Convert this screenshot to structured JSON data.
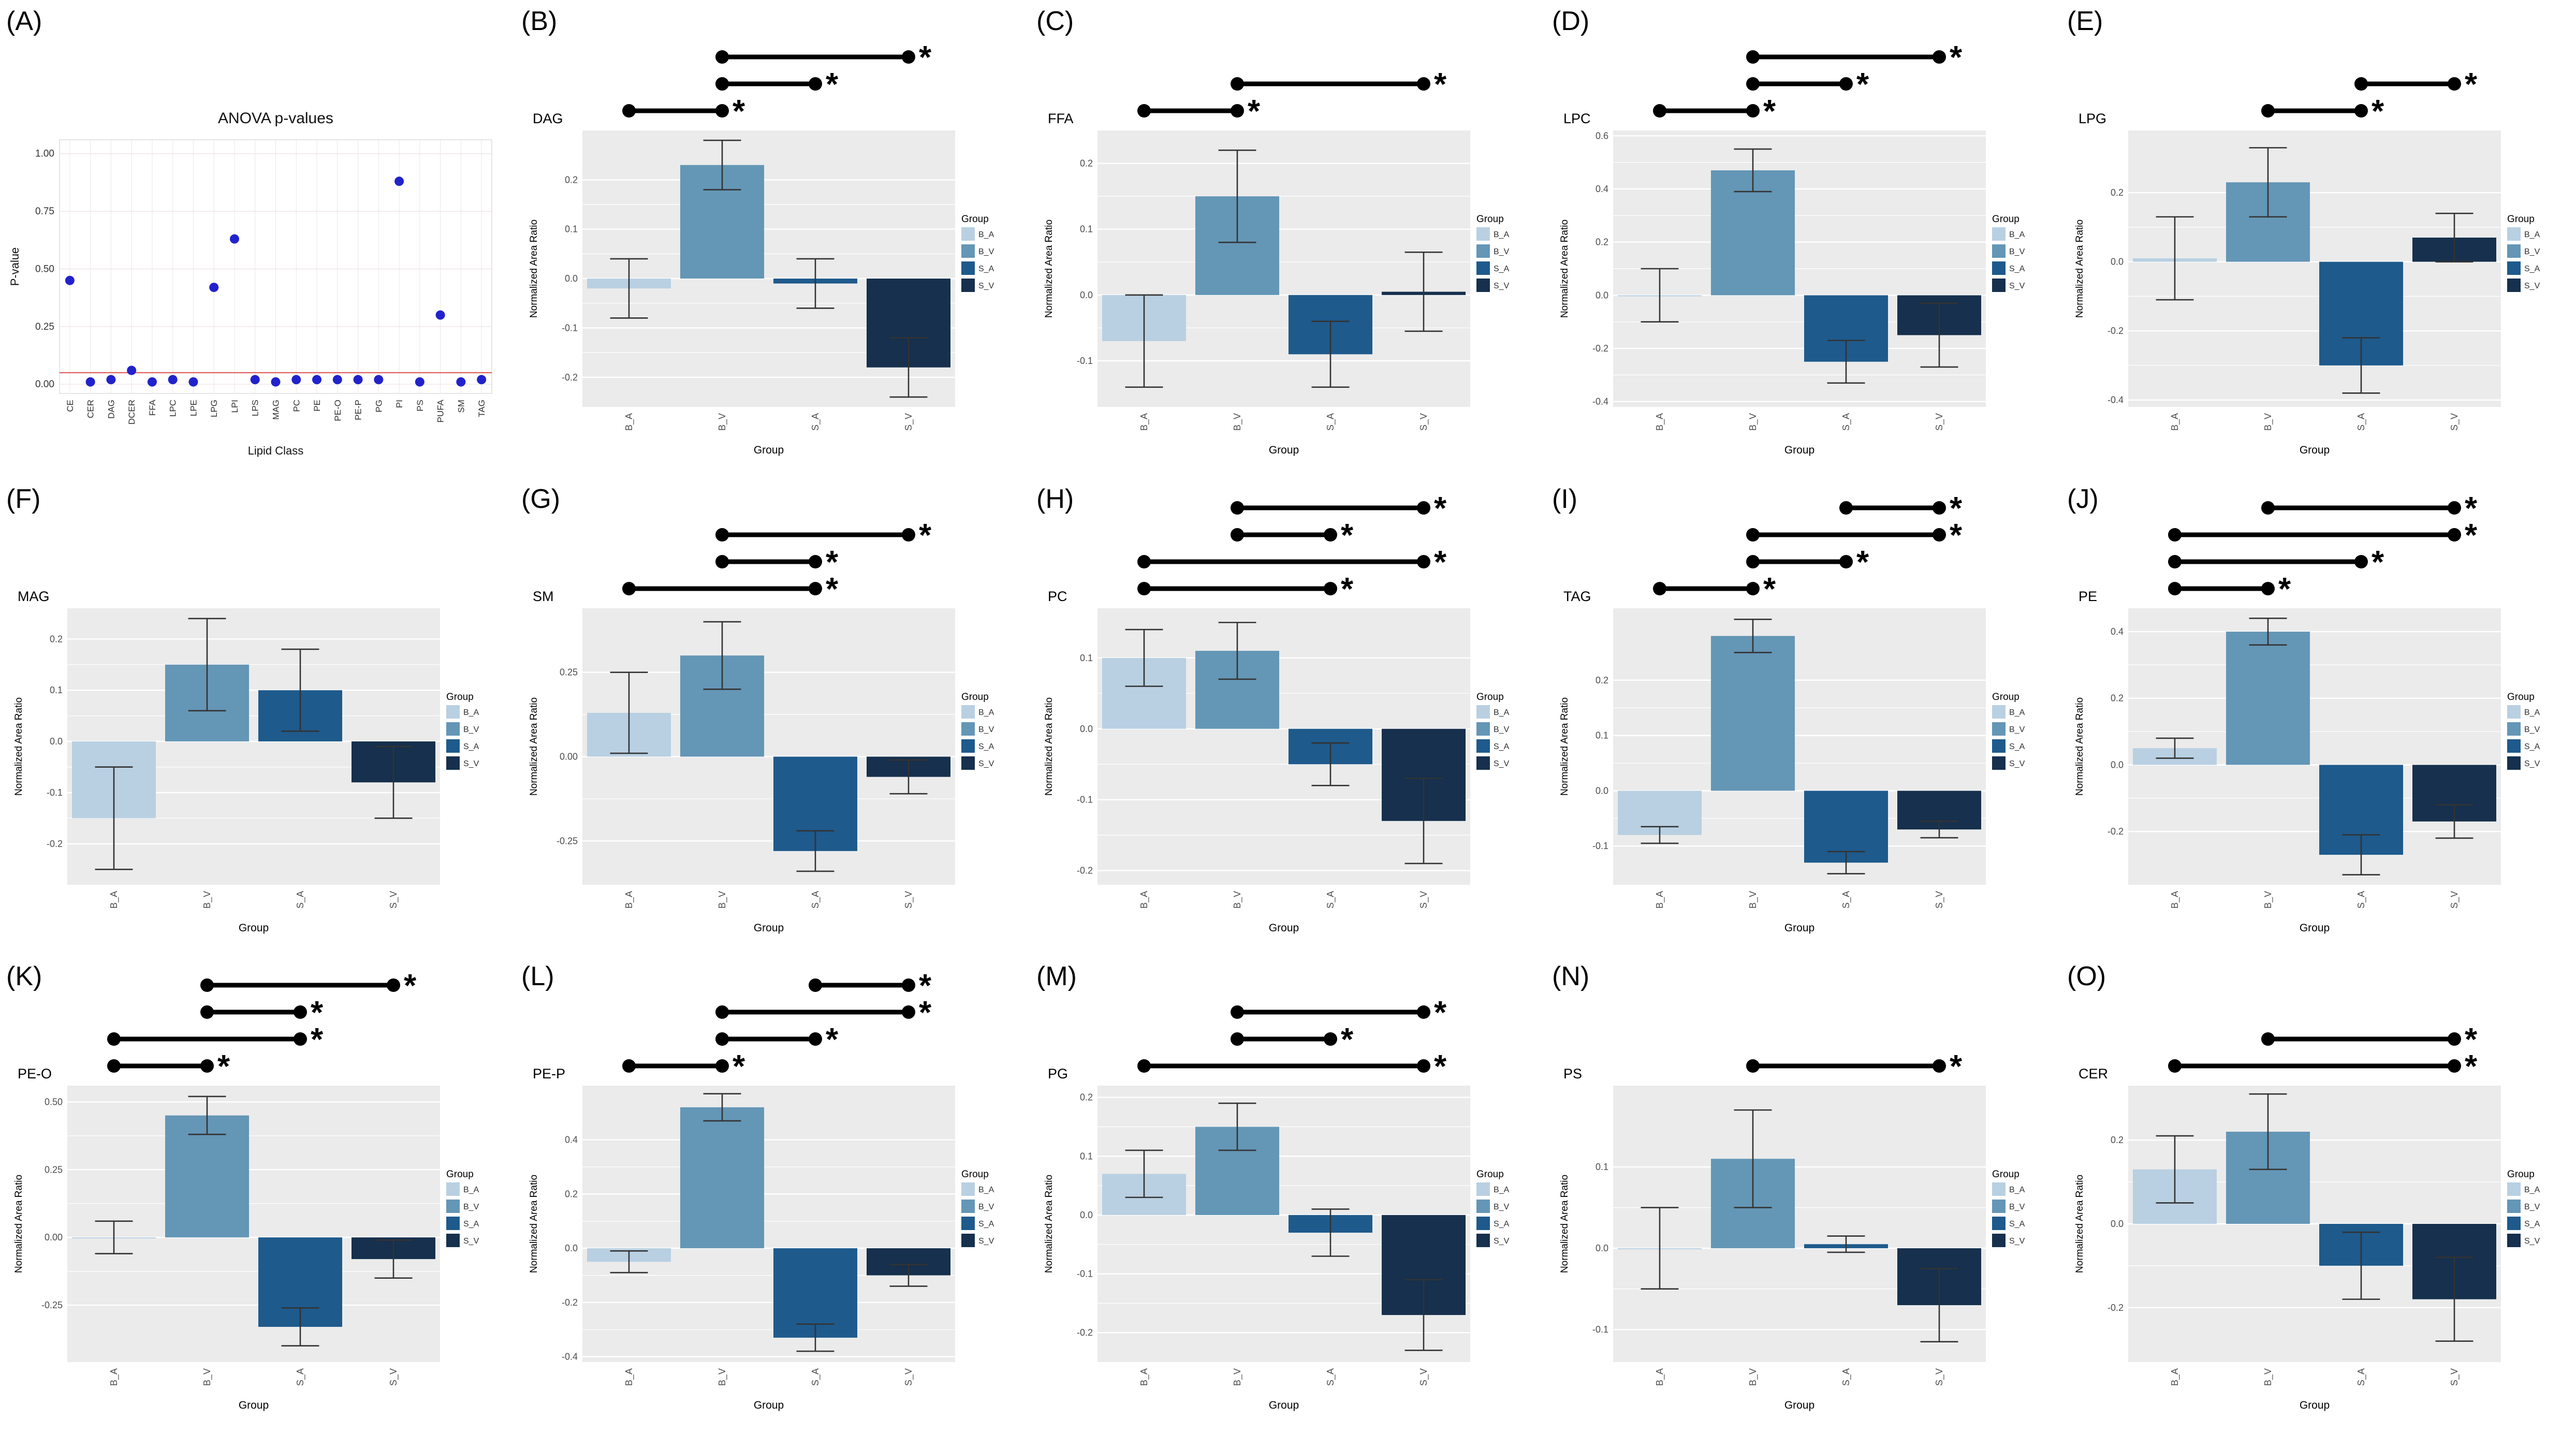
{
  "palette": {
    "legend_title": "Group",
    "groups": [
      "B_A",
      "B_V",
      "S_A",
      "S_V"
    ],
    "colors": [
      "#b9d0e2",
      "#6496b6",
      "#1e5a8c",
      "#16304d"
    ]
  },
  "styles": {
    "panel_background": "#ebebeb",
    "gridline_color": "#ffffff",
    "significance_color": "#000000"
  },
  "chart_data": [
    {
      "panel": "A",
      "panel_label": "(A)",
      "type": "scatter",
      "title": "ANOVA p-values",
      "xlabel": "Lipid Class",
      "ylabel": "P-value",
      "categories": [
        "CE",
        "CER",
        "DAG",
        "DCER",
        "FFA",
        "LPC",
        "LPE",
        "LPG",
        "LPI",
        "LPS",
        "MAG",
        "PC",
        "PE",
        "PE-O",
        "PE-P",
        "PG",
        "PI",
        "PS",
        "PUFA",
        "SM",
        "TAG"
      ],
      "values": [
        0.45,
        0.01,
        0.02,
        0.06,
        0.01,
        0.02,
        0.01,
        0.42,
        0.63,
        0.02,
        0.01,
        0.02,
        0.02,
        0.02,
        0.02,
        0.02,
        0.88,
        0.01,
        0.3,
        0.01,
        0.02
      ],
      "ylim": [
        -0.04,
        1.06
      ],
      "yticks": [
        0.0,
        0.25,
        0.5,
        0.75,
        1.0
      ],
      "ytick_labels": [
        "0.00",
        "0.25",
        "0.50",
        "0.75",
        "1.00"
      ],
      "hline": {
        "y": 0.05,
        "color": "#e06060"
      },
      "point_color": "#2222cc"
    },
    {
      "panel": "B",
      "panel_label": "(B)",
      "type": "bar",
      "title": "DAG",
      "xlabel": "Group",
      "ylabel": "Normalized Area Ratio",
      "categories": [
        "B_A",
        "B_V",
        "S_A",
        "S_V"
      ],
      "values": [
        -0.02,
        0.23,
        -0.01,
        -0.18
      ],
      "errors": [
        0.06,
        0.05,
        0.05,
        0.06
      ],
      "ylim": [
        -0.26,
        0.3
      ],
      "yticks": [
        -0.2,
        -0.1,
        0.0,
        0.1,
        0.2
      ],
      "ytick_labels": [
        "-0.2",
        "-0.1",
        "0.0",
        "0.1",
        "0.2"
      ],
      "significance": [
        [
          1,
          3
        ],
        [
          1,
          2
        ],
        [
          0,
          1
        ]
      ]
    },
    {
      "panel": "C",
      "panel_label": "(C)",
      "type": "bar",
      "title": "FFA",
      "xlabel": "Group",
      "ylabel": "Normalized Area Ratio",
      "categories": [
        "B_A",
        "B_V",
        "S_A",
        "S_V"
      ],
      "values": [
        -0.07,
        0.15,
        -0.09,
        0.005
      ],
      "errors": [
        0.07,
        0.07,
        0.05,
        0.06
      ],
      "ylim": [
        -0.17,
        0.25
      ],
      "yticks": [
        -0.1,
        0.0,
        0.1,
        0.2
      ],
      "ytick_labels": [
        "-0.1",
        "0.0",
        "0.1",
        "0.2"
      ],
      "significance": [
        [
          1,
          3
        ],
        [
          0,
          1
        ]
      ]
    },
    {
      "panel": "D",
      "panel_label": "(D)",
      "type": "bar",
      "title": "LPC",
      "xlabel": "Group",
      "ylabel": "Normalized Area Ratio",
      "categories": [
        "B_A",
        "B_V",
        "S_A",
        "S_V"
      ],
      "values": [
        0.0,
        0.47,
        -0.25,
        -0.15
      ],
      "errors": [
        0.1,
        0.08,
        0.08,
        0.12
      ],
      "ylim": [
        -0.42,
        0.62
      ],
      "yticks": [
        -0.4,
        -0.2,
        0.0,
        0.2,
        0.4,
        0.6
      ],
      "ytick_labels": [
        "-0.4",
        "-0.2",
        "0.0",
        "0.2",
        "0.4",
        "0.6"
      ],
      "significance": [
        [
          1,
          3
        ],
        [
          1,
          2
        ],
        [
          0,
          1
        ]
      ]
    },
    {
      "panel": "E",
      "panel_label": "(E)",
      "type": "bar",
      "title": "LPG",
      "xlabel": "Group",
      "ylabel": "Normalized Area Ratio",
      "categories": [
        "B_A",
        "B_V",
        "S_A",
        "S_V"
      ],
      "values": [
        0.01,
        0.23,
        -0.3,
        0.07
      ],
      "errors": [
        0.12,
        0.1,
        0.08,
        0.07
      ],
      "ylim": [
        -0.42,
        0.38
      ],
      "yticks": [
        -0.4,
        -0.2,
        0.0,
        0.2
      ],
      "ytick_labels": [
        "-0.4",
        "-0.2",
        "0.0",
        "0.2"
      ],
      "significance": [
        [
          2,
          3
        ],
        [
          1,
          2
        ]
      ]
    },
    {
      "panel": "F",
      "panel_label": "(F)",
      "type": "bar",
      "title": "MAG",
      "xlabel": "Group",
      "ylabel": "Normalized Area Ratio",
      "categories": [
        "B_A",
        "B_V",
        "S_A",
        "S_V"
      ],
      "values": [
        -0.15,
        0.15,
        0.1,
        -0.08
      ],
      "errors": [
        0.1,
        0.09,
        0.08,
        0.07
      ],
      "ylim": [
        -0.28,
        0.26
      ],
      "yticks": [
        -0.2,
        -0.1,
        0.0,
        0.1,
        0.2
      ],
      "ytick_labels": [
        "-0.2",
        "-0.1",
        "0.0",
        "0.1",
        "0.2"
      ],
      "significance": []
    },
    {
      "panel": "G",
      "panel_label": "(G)",
      "type": "bar",
      "title": "SM",
      "xlabel": "Group",
      "ylabel": "Normalized Area Ratio",
      "categories": [
        "B_A",
        "B_V",
        "S_A",
        "S_V"
      ],
      "values": [
        0.13,
        0.3,
        -0.28,
        -0.06
      ],
      "errors": [
        0.12,
        0.1,
        0.06,
        0.05
      ],
      "ylim": [
        -0.38,
        0.44
      ],
      "yticks": [
        -0.25,
        0.0,
        0.25
      ],
      "ytick_labels": [
        "-0.25",
        "0.00",
        "0.25"
      ],
      "significance": [
        [
          1,
          3
        ],
        [
          1,
          2
        ],
        [
          0,
          2
        ]
      ]
    },
    {
      "panel": "H",
      "panel_label": "(H)",
      "type": "bar",
      "title": "PC",
      "xlabel": "Group",
      "ylabel": "Normalized Area Ratio",
      "categories": [
        "B_A",
        "B_V",
        "S_A",
        "S_V"
      ],
      "values": [
        0.1,
        0.11,
        -0.05,
        -0.13
      ],
      "errors": [
        0.04,
        0.04,
        0.03,
        0.06
      ],
      "ylim": [
        -0.22,
        0.17
      ],
      "yticks": [
        -0.2,
        -0.1,
        0.0,
        0.1
      ],
      "ytick_labels": [
        "-0.2",
        "-0.1",
        "0.0",
        "0.1"
      ],
      "significance": [
        [
          1,
          3
        ],
        [
          1,
          2
        ],
        [
          0,
          3
        ],
        [
          0,
          2
        ]
      ]
    },
    {
      "panel": "I",
      "panel_label": "(I)",
      "type": "bar",
      "title": "TAG",
      "xlabel": "Group",
      "ylabel": "Normalized Area Ratio",
      "categories": [
        "B_A",
        "B_V",
        "S_A",
        "S_V"
      ],
      "values": [
        -0.08,
        0.28,
        -0.13,
        -0.07
      ],
      "errors": [
        0.015,
        0.03,
        0.02,
        0.015
      ],
      "ylim": [
        -0.17,
        0.33
      ],
      "yticks": [
        -0.1,
        0.0,
        0.1,
        0.2
      ],
      "ytick_labels": [
        "-0.1",
        "0.0",
        "0.1",
        "0.2"
      ],
      "significance": [
        [
          2,
          3
        ],
        [
          1,
          3
        ],
        [
          1,
          2
        ],
        [
          0,
          1
        ]
      ]
    },
    {
      "panel": "J",
      "panel_label": "(J)",
      "type": "bar",
      "title": "PE",
      "xlabel": "Group",
      "ylabel": "Normalized Area Ratio",
      "categories": [
        "B_A",
        "B_V",
        "S_A",
        "S_V"
      ],
      "values": [
        0.05,
        0.4,
        -0.27,
        -0.17
      ],
      "errors": [
        0.03,
        0.04,
        0.06,
        0.05
      ],
      "ylim": [
        -0.36,
        0.47
      ],
      "yticks": [
        -0.2,
        0.0,
        0.2,
        0.4
      ],
      "ytick_labels": [
        "-0.2",
        "0.0",
        "0.2",
        "0.4"
      ],
      "significance": [
        [
          1,
          3
        ],
        [
          0,
          3
        ],
        [
          0,
          2
        ],
        [
          0,
          1
        ]
      ]
    },
    {
      "panel": "K",
      "panel_label": "(K)",
      "type": "bar",
      "title": "PE-O",
      "xlabel": "Group",
      "ylabel": "Normalized Area Ratio",
      "categories": [
        "B_A",
        "B_V",
        "S_A",
        "S_V"
      ],
      "values": [
        0.0,
        0.45,
        -0.33,
        -0.08
      ],
      "errors": [
        0.06,
        0.07,
        0.07,
        0.07
      ],
      "ylim": [
        -0.46,
        0.56
      ],
      "yticks": [
        -0.25,
        0.0,
        0.25,
        0.5
      ],
      "ytick_labels": [
        "-0.25",
        "0.00",
        "0.25",
        "0.50"
      ],
      "significance": [
        [
          1,
          3
        ],
        [
          1,
          2
        ],
        [
          0,
          2
        ],
        [
          0,
          1
        ]
      ]
    },
    {
      "panel": "L",
      "panel_label": "(L)",
      "type": "bar",
      "title": "PE-P",
      "xlabel": "Group",
      "ylabel": "Normalized Area Ratio",
      "categories": [
        "B_A",
        "B_V",
        "S_A",
        "S_V"
      ],
      "values": [
        -0.05,
        0.52,
        -0.33,
        -0.1
      ],
      "errors": [
        0.04,
        0.05,
        0.05,
        0.04
      ],
      "ylim": [
        -0.42,
        0.6
      ],
      "yticks": [
        -0.4,
        -0.2,
        0.0,
        0.2,
        0.4
      ],
      "ytick_labels": [
        "-0.4",
        "-0.2",
        "0.0",
        "0.2",
        "0.4"
      ],
      "significance": [
        [
          2,
          3
        ],
        [
          1,
          3
        ],
        [
          1,
          2
        ],
        [
          0,
          1
        ]
      ]
    },
    {
      "panel": "M",
      "panel_label": "(M)",
      "type": "bar",
      "title": "PG",
      "xlabel": "Group",
      "ylabel": "Normalized Area Ratio",
      "categories": [
        "B_A",
        "B_V",
        "S_A",
        "S_V"
      ],
      "values": [
        0.07,
        0.15,
        -0.03,
        -0.17
      ],
      "errors": [
        0.04,
        0.04,
        0.04,
        0.06
      ],
      "ylim": [
        -0.25,
        0.22
      ],
      "yticks": [
        -0.2,
        -0.1,
        0.0,
        0.1,
        0.2
      ],
      "ytick_labels": [
        "-0.2",
        "-0.1",
        "0.0",
        "0.1",
        "0.2"
      ],
      "significance": [
        [
          1,
          3
        ],
        [
          1,
          2
        ],
        [
          0,
          3
        ]
      ]
    },
    {
      "panel": "N",
      "panel_label": "(N)",
      "type": "bar",
      "title": "PS",
      "xlabel": "Group",
      "ylabel": "Normalized Area Ratio",
      "categories": [
        "B_A",
        "B_V",
        "S_A",
        "S_V"
      ],
      "values": [
        0.0,
        0.11,
        0.005,
        -0.07
      ],
      "errors": [
        0.05,
        0.06,
        0.01,
        0.045
      ],
      "ylim": [
        -0.14,
        0.2
      ],
      "yticks": [
        -0.1,
        0.0,
        0.1
      ],
      "ytick_labels": [
        "-0.1",
        "0.0",
        "0.1"
      ],
      "significance": [
        [
          1,
          3
        ]
      ]
    },
    {
      "panel": "O",
      "panel_label": "(O)",
      "type": "bar",
      "title": "CER",
      "xlabel": "Group",
      "ylabel": "Normalized Area Ratio",
      "categories": [
        "B_A",
        "B_V",
        "S_A",
        "S_V"
      ],
      "values": [
        0.13,
        0.22,
        -0.1,
        -0.18
      ],
      "errors": [
        0.08,
        0.09,
        0.08,
        0.1
      ],
      "ylim": [
        -0.33,
        0.33
      ],
      "yticks": [
        -0.2,
        0.0,
        0.2
      ],
      "ytick_labels": [
        "-0.2",
        "0.0",
        "0.2"
      ],
      "significance": [
        [
          1,
          3
        ],
        [
          0,
          3
        ]
      ]
    }
  ]
}
